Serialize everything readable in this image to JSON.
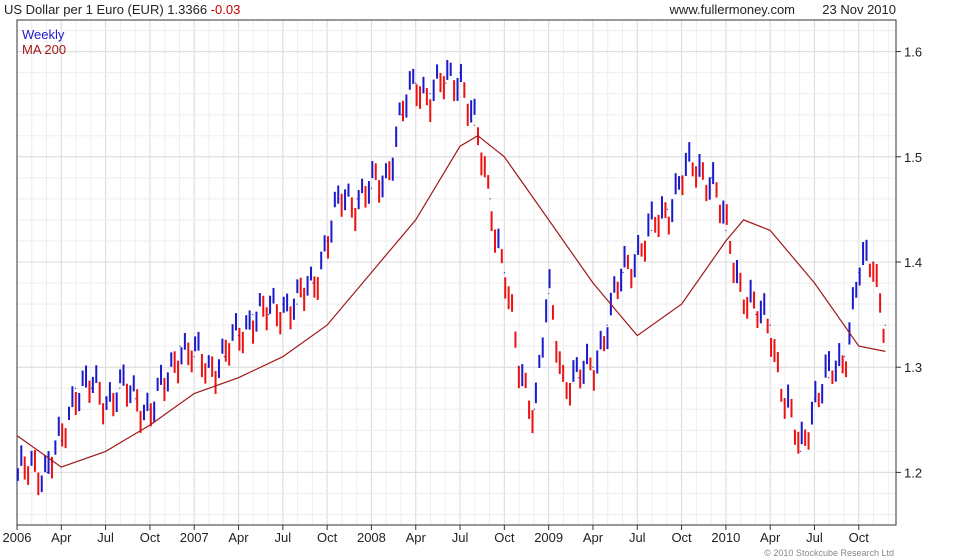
{
  "header": {
    "series_title": "US Dollar per 1 Euro (EUR)",
    "last_value": "1.3366",
    "change": "-0.03",
    "site": "www.fullermoney.com",
    "date": "23 Nov 2010"
  },
  "footer": {
    "copyright": "© 2010 Stockcube Research Ltd"
  },
  "colors": {
    "up_bar": "#1a1acc",
    "down_bar": "#ee1111",
    "ma_line": "#a01818",
    "grid": "#dcdcdc",
    "axis": "#333333"
  },
  "chart_data": {
    "type": "line",
    "subtype": "weekly high-low bars with moving average",
    "title": "US Dollar per 1 Euro (EUR)",
    "ylim": [
      1.15,
      1.63
    ],
    "y_ticks": [
      1.2,
      1.3,
      1.4,
      1.5,
      1.6
    ],
    "y_tick_labels": [
      "1.2",
      "1.3",
      "1.4",
      "1.5",
      "1.6"
    ],
    "x_range": [
      2006.0,
      2010.96
    ],
    "x_ticks": [
      2006.0,
      2006.25,
      2006.5,
      2006.75,
      2007.0,
      2007.25,
      2007.5,
      2007.75,
      2008.0,
      2008.25,
      2008.5,
      2008.75,
      2009.0,
      2009.25,
      2009.5,
      2009.75,
      2010.0,
      2010.25,
      2010.5,
      2010.75
    ],
    "x_tick_labels": [
      "2006",
      "Apr",
      "Jul",
      "Oct",
      "2007",
      "Apr",
      "Jul",
      "Oct",
      "2008",
      "Apr",
      "Jul",
      "Oct",
      "2009",
      "Apr",
      "Jul",
      "Oct",
      "2010",
      "Apr",
      "Jul",
      "Oct"
    ],
    "grid": true,
    "legend": [
      {
        "name": "Weekly",
        "color": "#1a1acc",
        "position": "top-left"
      },
      {
        "name": "MA 200",
        "color": "#a01818",
        "position": "top-left"
      }
    ],
    "series": [
      {
        "name": "Weekly",
        "x": [
          2006.0,
          2006.08,
          2006.17,
          2006.25,
          2006.33,
          2006.42,
          2006.5,
          2006.58,
          2006.67,
          2006.75,
          2006.83,
          2006.92,
          2007.0,
          2007.08,
          2007.17,
          2007.25,
          2007.33,
          2007.42,
          2007.5,
          2007.58,
          2007.67,
          2007.75,
          2007.83,
          2007.92,
          2008.0,
          2008.08,
          2008.17,
          2008.25,
          2008.33,
          2008.42,
          2008.5,
          2008.58,
          2008.67,
          2008.75,
          2008.83,
          2008.92,
          2009.0,
          2009.08,
          2009.17,
          2009.25,
          2009.33,
          2009.42,
          2009.5,
          2009.58,
          2009.67,
          2009.75,
          2009.83,
          2009.92,
          2010.0,
          2010.08,
          2010.17,
          2010.25,
          2010.33,
          2010.42,
          2010.5,
          2010.58,
          2010.67,
          2010.75,
          2010.83,
          2010.9
        ],
        "values": [
          1.19,
          1.21,
          1.2,
          1.23,
          1.28,
          1.28,
          1.27,
          1.28,
          1.27,
          1.26,
          1.28,
          1.32,
          1.31,
          1.3,
          1.31,
          1.33,
          1.35,
          1.35,
          1.36,
          1.36,
          1.38,
          1.42,
          1.46,
          1.46,
          1.47,
          1.48,
          1.54,
          1.57,
          1.56,
          1.57,
          1.58,
          1.53,
          1.46,
          1.39,
          1.3,
          1.26,
          1.37,
          1.29,
          1.29,
          1.3,
          1.34,
          1.39,
          1.41,
          1.43,
          1.45,
          1.48,
          1.49,
          1.48,
          1.43,
          1.38,
          1.35,
          1.34,
          1.27,
          1.22,
          1.27,
          1.29,
          1.31,
          1.39,
          1.4,
          1.34
        ]
      },
      {
        "name": "MA 200",
        "x": [
          2006.0,
          2006.25,
          2006.5,
          2006.75,
          2007.0,
          2007.25,
          2007.5,
          2007.75,
          2008.0,
          2008.25,
          2008.5,
          2008.6,
          2008.75,
          2009.0,
          2009.25,
          2009.5,
          2009.75,
          2010.0,
          2010.1,
          2010.25,
          2010.5,
          2010.75,
          2010.9
        ],
        "values": [
          1.235,
          1.205,
          1.22,
          1.245,
          1.275,
          1.29,
          1.31,
          1.34,
          1.39,
          1.44,
          1.51,
          1.52,
          1.5,
          1.44,
          1.38,
          1.33,
          1.36,
          1.42,
          1.44,
          1.43,
          1.38,
          1.32,
          1.315
        ]
      }
    ]
  }
}
